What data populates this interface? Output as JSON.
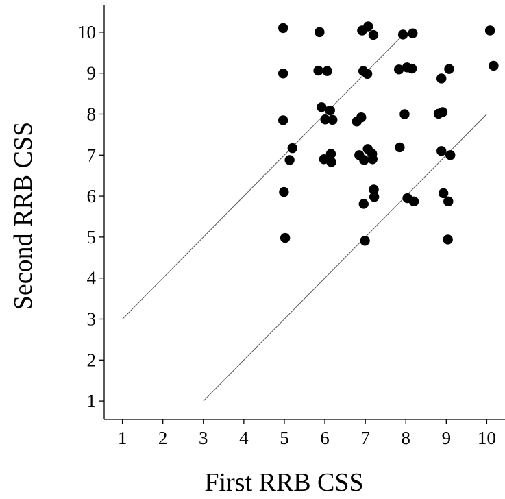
{
  "chart_data": {
    "type": "scatter",
    "title": "",
    "xlabel": "First RRB CSS",
    "ylabel": "Second RRB CSS",
    "xlim": [
      0.55,
      10.45
    ],
    "ylim": [
      0.55,
      10.65
    ],
    "x_ticks": [
      1,
      2,
      3,
      4,
      5,
      6,
      7,
      8,
      9,
      10
    ],
    "y_ticks": [
      1,
      2,
      3,
      4,
      5,
      6,
      7,
      8,
      9,
      10
    ],
    "x_tick_labels": [
      "1",
      "2",
      "3",
      "4",
      "5",
      "6",
      "7",
      "8",
      "9",
      "10"
    ],
    "y_tick_labels": [
      "1",
      "2",
      "3",
      "4",
      "5",
      "6",
      "7",
      "8",
      "9",
      "10"
    ],
    "grid": false,
    "legend": "none",
    "reference_lines": [
      {
        "x": [
          1,
          8
        ],
        "y": [
          3,
          10
        ]
      },
      {
        "x": [
          3,
          10
        ],
        "y": [
          1,
          8
        ]
      }
    ],
    "points": [
      {
        "x": 4.97,
        "y": 10.1
      },
      {
        "x": 5.87,
        "y": 10.0
      },
      {
        "x": 6.92,
        "y": 10.04
      },
      {
        "x": 7.07,
        "y": 10.14
      },
      {
        "x": 7.2,
        "y": 9.93
      },
      {
        "x": 7.93,
        "y": 9.94
      },
      {
        "x": 8.17,
        "y": 9.97
      },
      {
        "x": 10.08,
        "y": 10.04
      },
      {
        "x": 4.97,
        "y": 8.99
      },
      {
        "x": 5.84,
        "y": 9.06
      },
      {
        "x": 6.06,
        "y": 9.05
      },
      {
        "x": 6.95,
        "y": 9.05
      },
      {
        "x": 7.05,
        "y": 8.98
      },
      {
        "x": 7.83,
        "y": 9.09
      },
      {
        "x": 8.03,
        "y": 9.14
      },
      {
        "x": 8.15,
        "y": 9.11
      },
      {
        "x": 8.88,
        "y": 8.87
      },
      {
        "x": 9.07,
        "y": 9.1
      },
      {
        "x": 10.17,
        "y": 9.18
      },
      {
        "x": 4.97,
        "y": 7.85
      },
      {
        "x": 5.92,
        "y": 8.17
      },
      {
        "x": 6.13,
        "y": 8.09
      },
      {
        "x": 6.01,
        "y": 7.87
      },
      {
        "x": 6.19,
        "y": 7.86
      },
      {
        "x": 6.79,
        "y": 7.82
      },
      {
        "x": 6.9,
        "y": 7.92
      },
      {
        "x": 7.97,
        "y": 8.0
      },
      {
        "x": 8.81,
        "y": 8.01
      },
      {
        "x": 8.91,
        "y": 8.05
      },
      {
        "x": 5.2,
        "y": 7.17
      },
      {
        "x": 5.13,
        "y": 6.88
      },
      {
        "x": 5.98,
        "y": 6.9
      },
      {
        "x": 6.15,
        "y": 7.03
      },
      {
        "x": 6.16,
        "y": 6.83
      },
      {
        "x": 6.85,
        "y": 7.0
      },
      {
        "x": 6.97,
        "y": 6.88
      },
      {
        "x": 7.06,
        "y": 7.15
      },
      {
        "x": 7.17,
        "y": 7.03
      },
      {
        "x": 7.18,
        "y": 6.9
      },
      {
        "x": 7.85,
        "y": 7.19
      },
      {
        "x": 8.88,
        "y": 7.1
      },
      {
        "x": 9.1,
        "y": 7.0
      },
      {
        "x": 4.99,
        "y": 6.1
      },
      {
        "x": 6.96,
        "y": 5.81
      },
      {
        "x": 7.21,
        "y": 6.16
      },
      {
        "x": 7.22,
        "y": 5.98
      },
      {
        "x": 8.04,
        "y": 5.95
      },
      {
        "x": 8.2,
        "y": 5.87
      },
      {
        "x": 8.93,
        "y": 6.07
      },
      {
        "x": 9.05,
        "y": 5.87
      },
      {
        "x": 5.02,
        "y": 4.98
      },
      {
        "x": 6.99,
        "y": 4.91
      },
      {
        "x": 9.04,
        "y": 4.94
      }
    ]
  }
}
